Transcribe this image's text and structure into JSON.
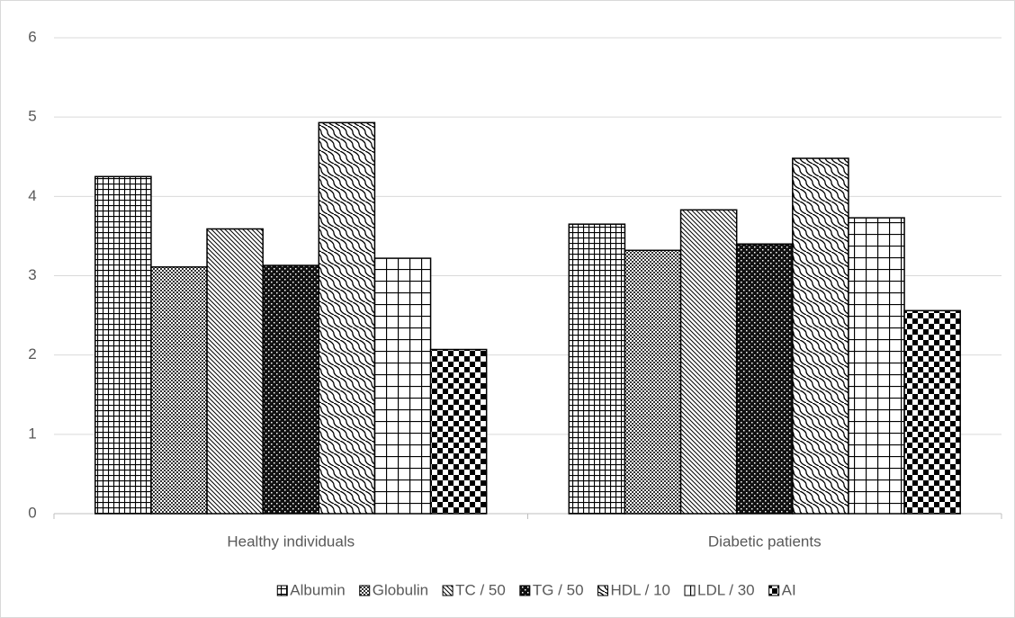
{
  "chart_data": {
    "type": "bar",
    "categories": [
      "Healthy individuals",
      "Diabetic patients"
    ],
    "series": [
      {
        "name": "Albumin",
        "color": "#000000",
        "values": [
          4.25,
          3.65
        ]
      },
      {
        "name": "Globulin",
        "color": "#000000",
        "values": [
          3.11,
          3.32
        ]
      },
      {
        "name": "TC / 50",
        "color": "#000000",
        "values": [
          3.59,
          3.83
        ]
      },
      {
        "name": "TG / 50",
        "color": "#000000",
        "values": [
          3.13,
          3.4
        ]
      },
      {
        "name": "HDL / 10",
        "color": "#000000",
        "values": [
          4.93,
          4.48
        ]
      },
      {
        "name": "LDL / 30",
        "color": "#000000",
        "values": [
          3.22,
          3.73
        ]
      },
      {
        "name": "AI",
        "color": "#000000",
        "values": [
          2.07,
          2.56
        ]
      }
    ],
    "ylim": [
      0,
      6
    ],
    "yticks": [
      0,
      1,
      2,
      3,
      4,
      5,
      6
    ],
    "grid": true,
    "legend": "bottom"
  }
}
